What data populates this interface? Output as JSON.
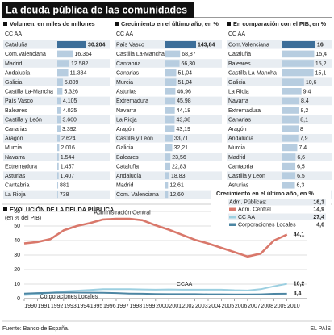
{
  "header": {
    "title": "La deuda pública de las comunidades"
  },
  "chart_data": [
    {
      "type": "bar",
      "orientation": "horizontal",
      "title": "Volumen, en miles de millones",
      "column_header": "CC AA",
      "categories": [
        "Cataluña",
        "Com.Valenciana",
        "Madrid",
        "Andalucía",
        "Galicia",
        "Castilla La-Mancha",
        "País Vasco",
        "Baleares",
        "Castilla y León",
        "Canarias",
        "Aragón",
        "Murcia",
        "Navarra",
        "Extremadura",
        "Asturias",
        "Cantabria",
        "La Rioja"
      ],
      "values": [
        30204,
        16364,
        12582,
        11384,
        5809,
        5326,
        4105,
        4025,
        3660,
        3392,
        2624,
        2016,
        1544,
        1457,
        1407,
        881,
        738
      ],
      "value_labels": [
        "30.204",
        "16.364",
        "12.582",
        "11.384",
        "5.809",
        "5.326",
        "4.105",
        "4.025",
        "3.660",
        "3.392",
        "2.624",
        "2.016",
        "1.544",
        "1.457",
        "1.407",
        "881",
        "738"
      ],
      "xlim": [
        0,
        30204
      ],
      "colors": [
        "#3d6e99",
        "#b7cde0",
        "#b7cde0",
        "#b7cde0",
        "#b7cde0",
        "#b7cde0",
        "#b7cde0",
        "#b7cde0",
        "#b7cde0",
        "#b7cde0",
        "#b7cde0",
        "#b7cde0",
        "#b7cde0",
        "#b7cde0",
        "#b7cde0",
        "#b7cde0",
        "#b7cde0"
      ]
    },
    {
      "type": "bar",
      "orientation": "horizontal",
      "title": "Crecimiento en el último año, en %",
      "column_header": "CC AA",
      "categories": [
        "País Vasco",
        "Castilla La-Mancha",
        "Cantabria",
        "Canarias",
        "Murcia",
        "Asturias",
        "Extremadura",
        "Navarra",
        "La Rioja",
        "Aragón",
        "Castilla y León",
        "Galicia",
        "Baleares",
        "Cataluña",
        "Andalucía",
        "Madrid",
        "Com. Valenciana"
      ],
      "values": [
        143.84,
        68.87,
        66.3,
        51.04,
        51.04,
        46.96,
        45.98,
        44.18,
        43.38,
        43.19,
        33.71,
        32.21,
        23.56,
        22.83,
        18.83,
        12.61,
        12.6
      ],
      "value_labels": [
        "143,84",
        "68,87",
        "66,30",
        "51,04",
        "51,04",
        "46,96",
        "45,98",
        "44,18",
        "43,38",
        "43,19",
        "33,71",
        "32,21",
        "23,56",
        "22,83",
        "18,83",
        "12,61",
        "12,60"
      ],
      "xlim": [
        0,
        143.84
      ],
      "colors": [
        "#3d6e99",
        "#b7cde0",
        "#b7cde0",
        "#b7cde0",
        "#b7cde0",
        "#b7cde0",
        "#b7cde0",
        "#b7cde0",
        "#b7cde0",
        "#b7cde0",
        "#b7cde0",
        "#b7cde0",
        "#b7cde0",
        "#b7cde0",
        "#b7cde0",
        "#b7cde0",
        "#b7cde0"
      ]
    },
    {
      "type": "bar",
      "orientation": "horizontal",
      "title": "En comparación con el PIB, en %",
      "column_header": "CC AA",
      "categories": [
        "Com.Valenciana",
        "Cataluña",
        "Baleares",
        "Castilla La-Mancha",
        "Galicia",
        "La Rioja",
        "Navarra",
        "Extremadura",
        "Canarias",
        "Aragón",
        "Andalucía",
        "Murcia",
        "Madrid",
        "Cantabria",
        "Castilla y León",
        "Asturias",
        "País Vasco"
      ],
      "values": [
        16,
        15.4,
        15.2,
        15.1,
        10.6,
        9.4,
        8.4,
        8.2,
        8.1,
        8,
        7.9,
        7.4,
        6.6,
        6.5,
        6.5,
        6.3,
        6.2
      ],
      "value_labels": [
        "16",
        "15,4",
        "15,2",
        "15,1",
        "10,6",
        "9,4",
        "8,4",
        "8,2",
        "8,1",
        "8",
        "7,9",
        "7,4",
        "6,6",
        "6,5",
        "6,5",
        "6,3",
        "6,2"
      ],
      "xlim": [
        0,
        16
      ],
      "colors": [
        "#3d6e99",
        "#b7cde0",
        "#b7cde0",
        "#b7cde0",
        "#b7cde0",
        "#b7cde0",
        "#b7cde0",
        "#b7cde0",
        "#b7cde0",
        "#b7cde0",
        "#b7cde0",
        "#b7cde0",
        "#b7cde0",
        "#b7cde0",
        "#b7cde0",
        "#b7cde0",
        "#b7cde0"
      ]
    },
    {
      "type": "line",
      "title": "EVOLUCIÓN DE LA DEUDA PÚBLICA",
      "y_label": "(en % del PIB)",
      "x": [
        1990,
        1991,
        1992,
        1993,
        1994,
        1995,
        1996,
        1997,
        1998,
        1999,
        2000,
        2001,
        2002,
        2003,
        2004,
        2005,
        2006,
        2007,
        2008,
        2009,
        2010
      ],
      "xlim": [
        1990,
        2011
      ],
      "xticks": [
        1990,
        1991,
        1992,
        1993,
        1994,
        1995,
        1996,
        1997,
        1998,
        1999,
        2000,
        2001,
        2002,
        2003,
        2004,
        2005,
        2006,
        2007,
        2008,
        2009,
        2010
      ],
      "ylim": [
        0,
        60
      ],
      "yticks": [
        0,
        10,
        20,
        30,
        40,
        50,
        60
      ],
      "grid": true,
      "series": [
        {
          "name": "Adm. Central",
          "annotation": "Administración Central",
          "color": "#d9786b",
          "values": [
            38,
            39,
            41,
            47,
            50,
            52,
            54.5,
            55,
            55,
            54,
            50.5,
            47.5,
            44,
            40.5,
            38,
            35,
            32,
            29,
            31,
            40,
            44.1
          ],
          "value_labels": [
            null,
            null,
            null,
            null,
            null,
            null,
            null,
            null,
            null,
            null,
            null,
            null,
            null,
            null,
            null,
            null,
            null,
            null,
            null,
            null,
            "44,1"
          ],
          "growth": 14.9,
          "growth_label": "14,9"
        },
        {
          "name": "CC AA",
          "annotation": "CCAA",
          "color": "#9ccfe0",
          "values": [
            2.5,
            3,
            4,
            5,
            5.5,
            6,
            6.5,
            6.5,
            6.5,
            6.3,
            6.2,
            6.3,
            6.2,
            6.2,
            6.2,
            6.2,
            5.8,
            5.6,
            6.5,
            8.5,
            10.2
          ],
          "value_labels": [
            null,
            null,
            null,
            null,
            null,
            null,
            null,
            null,
            null,
            null,
            null,
            null,
            null,
            null,
            null,
            null,
            null,
            null,
            null,
            null,
            "10,2"
          ],
          "growth": 27.4,
          "growth_label": "27,4"
        },
        {
          "name": "Corporaciones Locales",
          "annotation": "Corporaciones Locales",
          "color": "#4d86a3",
          "values": [
            3.5,
            3.8,
            4,
            4.2,
            4.2,
            4.1,
            4,
            3.8,
            3.5,
            3.4,
            3.2,
            3.1,
            3.1,
            3.1,
            3,
            3,
            2.9,
            2.9,
            3,
            3.3,
            3.4
          ],
          "value_labels": [
            null,
            null,
            null,
            null,
            null,
            null,
            null,
            null,
            null,
            null,
            null,
            null,
            null,
            null,
            null,
            null,
            null,
            null,
            null,
            null,
            "3,4"
          ],
          "growth": 4.6,
          "growth_label": "4,6"
        }
      ],
      "legend": {
        "title": "Crecimiento en el último año, en %",
        "total_label": "Adm. Públicas:",
        "total": 16.3,
        "total_value_label": "16,3"
      }
    }
  ],
  "footer": {
    "source": "Fuente: Banco de España.",
    "brand": "EL PAÍS"
  }
}
